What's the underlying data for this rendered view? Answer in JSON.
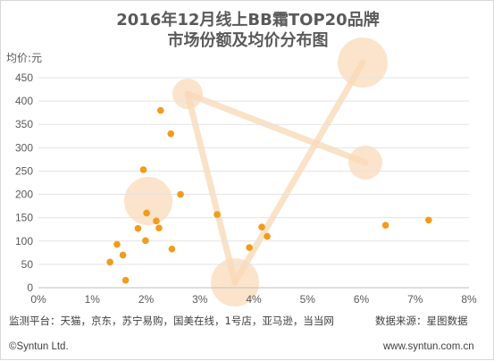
{
  "chart_data": {
    "type": "scatter",
    "title_line1": "2016年12月线上BB霜TOP20品牌",
    "title_line2": "市场份额及均价分布图",
    "ylabel": "均价:元",
    "xlabel": "",
    "xlim": [
      0,
      8
    ],
    "ylim": [
      0,
      450
    ],
    "x_ticks": [
      "0%",
      "1%",
      "2%",
      "3%",
      "4%",
      "5%",
      "6%",
      "7%",
      "8%"
    ],
    "y_ticks": [
      "0",
      "50",
      "100",
      "150",
      "200",
      "250",
      "300",
      "350",
      "400",
      "450"
    ],
    "grid": "horizontal",
    "point_color": "#f29b1d",
    "x_unit": "%",
    "points": [
      {
        "x": 1.33,
        "y": 55
      },
      {
        "x": 1.46,
        "y": 93
      },
      {
        "x": 1.57,
        "y": 70
      },
      {
        "x": 1.62,
        "y": 16
      },
      {
        "x": 1.85,
        "y": 127
      },
      {
        "x": 1.95,
        "y": 253
      },
      {
        "x": 1.99,
        "y": 101
      },
      {
        "x": 2.01,
        "y": 160
      },
      {
        "x": 2.19,
        "y": 143
      },
      {
        "x": 2.24,
        "y": 128
      },
      {
        "x": 2.27,
        "y": 380
      },
      {
        "x": 2.46,
        "y": 330
      },
      {
        "x": 2.48,
        "y": 83
      },
      {
        "x": 2.64,
        "y": 200
      },
      {
        "x": 3.32,
        "y": 157
      },
      {
        "x": 3.92,
        "y": 86
      },
      {
        "x": 4.15,
        "y": 130
      },
      {
        "x": 4.25,
        "y": 110
      },
      {
        "x": 6.45,
        "y": 134
      },
      {
        "x": 7.25,
        "y": 145
      }
    ]
  },
  "watermark_color": "#f9d9b5",
  "footer": {
    "source_platforms": "监测平台：天猫，京东，苏宁易购，国美在线，1号店，亚马逊，当当网",
    "data_source": "数据来源：星图数据",
    "copyright": "©Syntun Ltd.",
    "website": "www.syntun.com.cn"
  }
}
